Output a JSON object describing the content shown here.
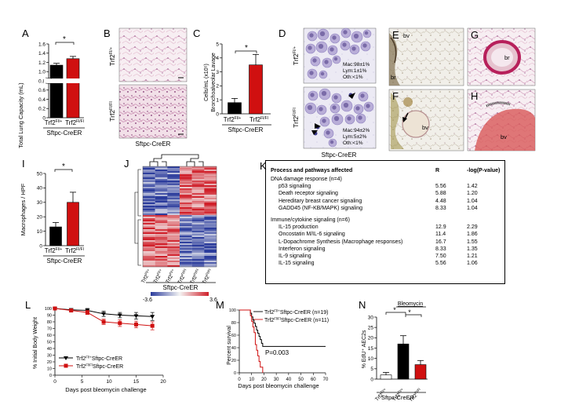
{
  "panels": {
    "A": {
      "letter": "A",
      "ylabel": "Total Lung Capacity (mL)",
      "yticks": [
        "1.6",
        "1.4",
        "1.2",
        "1.0",
        "0.8",
        "0.6",
        "0.4",
        "0.2",
        "0"
      ],
      "groups": [
        "Trf2",
        "Trf2"
      ],
      "sups": [
        "Fl/+",
        "Fl/Fl"
      ],
      "values": [
        1.14,
        1.28
      ],
      "errors": [
        0.04,
        0.05
      ],
      "colors": [
        "#000000",
        "#d01010"
      ],
      "sig": "*",
      "genotype": "Sftpc-CreER"
    },
    "B": {
      "letter": "B",
      "top_label": "Trf2",
      "top_sup": "Fl/+",
      "bottom_label": "Trf2",
      "bottom_sup": "Fl/Fl",
      "genotype": "Sftpc-CreER"
    },
    "C": {
      "letter": "C",
      "ylabel_main": "Bronchoalveolar Lavage",
      "ylabel_units": "Cells/mL (x10⁵)",
      "yticks": [
        "5",
        "4",
        "3",
        "2",
        "1",
        "0"
      ],
      "groups": [
        "Trf2",
        "Trf2"
      ],
      "sups": [
        "Fl/+",
        "Fl/Fl"
      ],
      "values": [
        0.8,
        3.5
      ],
      "errors": [
        0.3,
        0.75
      ],
      "colors": [
        "#000000",
        "#d01010"
      ],
      "sig": "*",
      "genotype": "Sftpc-CreER"
    },
    "D": {
      "letter": "D",
      "top_label": "Trf2",
      "top_sup": "Fl/+",
      "bottom_label": "Trf2",
      "bottom_sup": "Fl/Fl",
      "top_stats": [
        "Mac:98±1%",
        "Lym:1±1%",
        "Oth:<1%"
      ],
      "bottom_stats": [
        "Mac:94±2%",
        "Lym:5±2%",
        "Oth:<1%"
      ],
      "genotype": "Sftpc-CreER"
    },
    "E": {
      "letter": "E",
      "tags": [
        "bv",
        "br"
      ]
    },
    "F": {
      "letter": "F",
      "tags": [
        "bv"
      ]
    },
    "G": {
      "letter": "G",
      "tags": [
        "br"
      ]
    },
    "H": {
      "letter": "H",
      "tags": [
        "bv"
      ]
    },
    "I": {
      "letter": "I",
      "ylabel": "Macrophages / HPF",
      "yticks": [
        "50",
        "40",
        "30",
        "20",
        "10",
        "0"
      ],
      "groups": [
        "Trf2",
        "Trf2"
      ],
      "sups": [
        "Fl/+",
        "Fl/Fl"
      ],
      "values": [
        13,
        30
      ],
      "errors": [
        3,
        7
      ],
      "colors": [
        "#000000",
        "#d01010"
      ],
      "sig": "*",
      "genotype": "Sftpc-CreER"
    },
    "J": {
      "letter": "J",
      "columns": [
        "Trf2",
        "Trf2",
        "Trf2",
        "Trf2",
        "Trf2",
        "Trf2"
      ],
      "column_sups": [
        "Fl/+",
        "Fl/+",
        "Fl/+",
        "Fl/Fl",
        "Fl/Fl",
        "Fl/Fl"
      ],
      "genotype": "Sftpc-CreER",
      "scale_min": "-3.6",
      "scale_max": "3.6"
    },
    "K": {
      "letter": "K",
      "headers": [
        "Process and pathways affected",
        "R",
        "-log(P-value)"
      ],
      "sections": [
        {
          "title": "DNA damage response (n=4)",
          "rows": [
            [
              "p53 signaling",
              "5.56",
              "1.42"
            ],
            [
              "Death receptor signaling",
              "5.88",
              "1.20"
            ],
            [
              "Hereditary breast cancer signaling",
              "4.48",
              "1.04"
            ],
            [
              "GADD45 (NF-KB/MAPK) signaling",
              "8.33",
              "1.04"
            ]
          ]
        },
        {
          "title": "Immune/cytokine signaling (n=6)",
          "rows": [
            [
              "IL-15 production",
              "12.9",
              "2.29"
            ],
            [
              "Oncostatin M/IL-6 signaling",
              "11.4",
              "1.86"
            ],
            [
              "L-Dopachrome Synthesis (Macrophage responses)",
              "16.7",
              "1.55"
            ],
            [
              "Interferon signaling",
              "8.33",
              "1.35"
            ],
            [
              "IL-9 signaling",
              "7.50",
              "1.21"
            ],
            [
              "IL-15 signaling",
              "5.56",
              "1.06"
            ]
          ]
        }
      ]
    },
    "L": {
      "letter": "L",
      "ylabel": "% Initial Body Weight",
      "xlabel": "Days post bleomycin challenge",
      "legend": [
        {
          "label": "Trf2",
          "sup": "Fl/+",
          "suffix": "Sftpc-CreER"
        },
        {
          "label": "Trf2",
          "sup": "Fl/Fl",
          "suffix": "Sftpc-CreER"
        }
      ]
    },
    "M": {
      "letter": "M",
      "ylabel": "Percent survival",
      "xlabel": "Days post bleomycin challenge",
      "pvalue": "P=0.003",
      "legend": [
        {
          "label": "Trf2",
          "sup": "Fl/+",
          "suffix": "Sftpc-CreER (n=19)"
        },
        {
          "label": "Trf2",
          "sup": "Fl/Fl",
          "suffix": "Sftpc-CreER (n=11)"
        }
      ]
    },
    "N": {
      "letter": "N",
      "ylabel": "% EdU⁺ AEC2s",
      "yticks": [
        "30",
        "25",
        "20",
        "15",
        "10",
        "5",
        "0"
      ],
      "bracket_label": "Bleomycin",
      "groups": [
        "Trf2",
        "Trf2",
        "Trf2"
      ],
      "sups": [
        "Fl/+",
        "Fl/+",
        "Fl/Fl"
      ],
      "values": [
        2,
        17,
        7
      ],
      "errors": [
        1.2,
        4,
        2
      ],
      "colors": [
        "#ffffff",
        "#000000",
        "#d01010"
      ],
      "sig": [
        "*",
        "*"
      ],
      "genotype": "Sftpc-CreER"
    }
  },
  "chart_data": [
    {
      "type": "bar",
      "title": "A",
      "ylabel": "Total Lung Capacity (mL)",
      "categories": [
        "Trf2 Fl/+",
        "Trf2 Fl/Fl"
      ],
      "values": [
        1.14,
        1.28
      ],
      "errors": [
        0.04,
        0.05
      ],
      "ylim": [
        0,
        1.6
      ]
    },
    {
      "type": "bar",
      "title": "C",
      "ylabel": "Cells/mL (x10^5) Bronchoalveolar Lavage",
      "categories": [
        "Trf2 Fl/+",
        "Trf2 Fl/Fl"
      ],
      "values": [
        0.8,
        3.5
      ],
      "errors": [
        0.3,
        0.75
      ],
      "ylim": [
        0,
        5
      ]
    },
    {
      "type": "bar",
      "title": "I",
      "ylabel": "Macrophages / HPF",
      "categories": [
        "Trf2 Fl/+",
        "Trf2 Fl/Fl"
      ],
      "values": [
        13,
        30
      ],
      "errors": [
        3,
        7
      ],
      "ylim": [
        0,
        50
      ]
    },
    {
      "type": "line",
      "title": "L",
      "xlabel": "Days post bleomycin challenge",
      "ylabel": "% Initial Body Weight",
      "xlim": [
        0,
        20
      ],
      "ylim": [
        0,
        100
      ],
      "xticks": [
        0,
        5,
        10,
        15,
        20
      ],
      "yticks": [
        0,
        10,
        20,
        30,
        40,
        50,
        60,
        70,
        80,
        90,
        100
      ],
      "series": [
        {
          "name": "Trf2 Fl/+ Sftpc-CreER",
          "x": [
            0,
            3,
            6,
            9,
            12,
            15,
            18
          ],
          "y": [
            100,
            98,
            97,
            92,
            90,
            89,
            88
          ],
          "err": [
            1,
            2,
            3,
            4,
            4,
            5,
            6
          ]
        },
        {
          "name": "Trf2 Fl/Fl Sftpc-CreER",
          "x": [
            0,
            3,
            6,
            9,
            12,
            15,
            18
          ],
          "y": [
            100,
            97,
            94,
            80,
            78,
            76,
            74
          ],
          "err": [
            1,
            2,
            3,
            4,
            5,
            5,
            6
          ]
        }
      ]
    },
    {
      "type": "line",
      "title": "M",
      "xlabel": "Days post bleomycin challenge",
      "ylabel": "Percent survival",
      "xlim": [
        0,
        70
      ],
      "ylim": [
        0,
        100
      ],
      "xticks": [
        0,
        10,
        20,
        30,
        40,
        50,
        60,
        70
      ],
      "yticks": [
        0,
        20,
        40,
        60,
        80,
        100
      ],
      "series": [
        {
          "name": "Trf2 Fl/+ Sftpc-CreER (n=19)",
          "x": [
            0,
            8,
            9,
            10,
            11,
            12,
            13,
            14,
            15,
            16,
            17,
            18,
            19,
            21,
            70
          ],
          "y": [
            100,
            100,
            95,
            89,
            84,
            79,
            74,
            68,
            63,
            58,
            53,
            47,
            42,
            42,
            42
          ]
        },
        {
          "name": "Trf2 Fl/Fl Sftpc-CreER (n=11)",
          "x": [
            0,
            8,
            9,
            10,
            11,
            12,
            13,
            14,
            15,
            16,
            17,
            18,
            19
          ],
          "y": [
            100,
            100,
            91,
            82,
            73,
            64,
            45,
            36,
            27,
            18,
            9,
            9,
            0
          ]
        }
      ],
      "annotation": "P=0.003"
    },
    {
      "type": "bar",
      "title": "N",
      "ylabel": "% EdU+ AEC2s",
      "categories": [
        "Trf2 Fl/+",
        "Trf2 Fl/+ (Bleomycin)",
        "Trf2 Fl/Fl (Bleomycin)"
      ],
      "values": [
        2,
        17,
        7
      ],
      "errors": [
        1.2,
        4,
        2
      ],
      "ylim": [
        0,
        30
      ]
    }
  ]
}
